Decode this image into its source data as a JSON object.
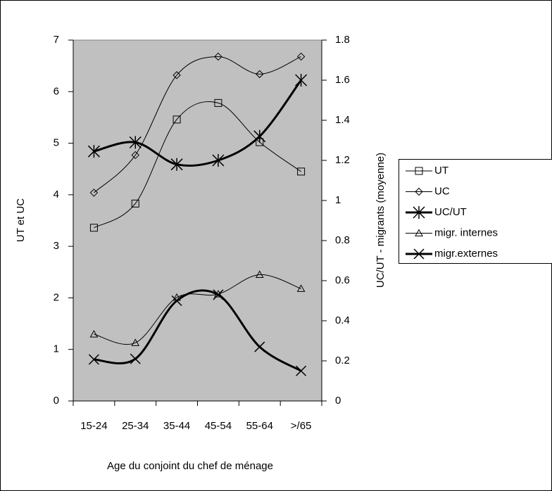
{
  "chart_data": {
    "type": "line",
    "smooth": true,
    "plot_background": "#c0c0c0",
    "x_label": "Age du conjoint du chef de ménage",
    "y_label": "UT et UC",
    "y2_label": "UC/UT - migrants (moyenne)",
    "categories": [
      "15-24",
      "25-34",
      "35-44",
      "45-54",
      "55-64",
      ">/65"
    ],
    "ylim": [
      0,
      7
    ],
    "yticks": [
      0,
      1,
      2,
      3,
      4,
      5,
      6,
      7
    ],
    "y2lim": [
      0,
      1.8
    ],
    "y2ticks": [
      0,
      0.2,
      0.4,
      0.6,
      0.8,
      1,
      1.2,
      1.4,
      1.6,
      1.8
    ],
    "legend": "right",
    "series": [
      {
        "name": "UT",
        "color": "#000000",
        "marker": "square",
        "line_width": 1,
        "values": [
          3.36,
          3.83,
          5.46,
          5.78,
          5.02,
          4.45
        ]
      },
      {
        "name": "UC",
        "color": "#000000",
        "marker": "diamond",
        "line_width": 1,
        "values": [
          4.04,
          4.77,
          6.32,
          6.68,
          6.34,
          6.68
        ]
      },
      {
        "name": "UC/UT",
        "color": "#000000",
        "marker": "asterisk",
        "line_width": 3,
        "axis": "y2",
        "values": [
          1.245,
          1.29,
          1.18,
          1.2,
          1.32,
          1.6
        ]
      },
      {
        "name": "migr. internes",
        "color": "#000000",
        "marker": "triangle",
        "line_width": 1,
        "axis": "y2",
        "values": [
          0.333,
          0.29,
          0.516,
          0.533,
          0.63,
          0.56
        ]
      },
      {
        "name": "migr.externes",
        "color": "#000000",
        "marker": "x",
        "line_width": 3,
        "axis": "y2",
        "values": [
          0.207,
          0.21,
          0.5,
          0.53,
          0.27,
          0.15
        ]
      }
    ]
  }
}
